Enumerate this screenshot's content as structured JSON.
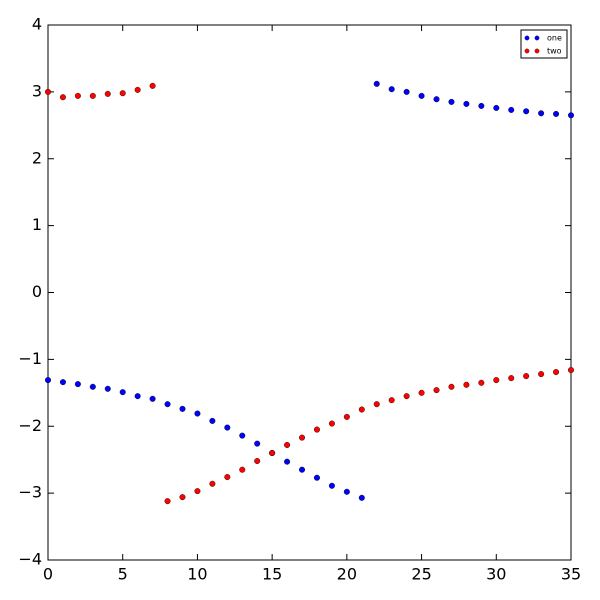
{
  "chart_data": {
    "type": "scatter",
    "x": [
      0,
      1,
      2,
      3,
      4,
      5,
      6,
      7,
      8,
      9,
      10,
      11,
      12,
      13,
      14,
      15,
      16,
      17,
      18,
      19,
      20,
      21,
      22,
      23,
      24,
      25,
      26,
      27,
      28,
      29,
      30,
      31,
      32,
      33,
      34,
      35
    ],
    "series": [
      {
        "name": "one",
        "color": "#0000ff",
        "values": [
          -1.31,
          -1.34,
          -1.37,
          -1.41,
          -1.44,
          -1.49,
          -1.55,
          -1.59,
          -1.67,
          -1.74,
          -1.81,
          -1.92,
          -2.02,
          -2.14,
          -2.26,
          -2.4,
          -2.53,
          -2.65,
          -2.77,
          -2.89,
          -2.98,
          -3.07,
          3.12,
          3.04,
          3.0,
          2.94,
          2.89,
          2.85,
          2.82,
          2.79,
          2.76,
          2.73,
          2.71,
          2.68,
          2.67,
          2.65
        ]
      },
      {
        "name": "two",
        "color": "#ff0000",
        "values": [
          3.0,
          2.92,
          2.94,
          2.94,
          2.97,
          2.98,
          3.03,
          3.09,
          -3.12,
          -3.06,
          -2.97,
          -2.86,
          -2.76,
          -2.65,
          -2.52,
          -2.4,
          -2.28,
          -2.17,
          -2.05,
          -1.96,
          -1.86,
          -1.75,
          -1.67,
          -1.61,
          -1.55,
          -1.5,
          -1.46,
          -1.41,
          -1.38,
          -1.35,
          -1.31,
          -1.28,
          -1.25,
          -1.22,
          -1.19,
          -1.16
        ]
      }
    ],
    "xlim": [
      0,
      35
    ],
    "xticks": [
      0,
      5,
      10,
      15,
      20,
      25,
      30,
      35
    ],
    "ylim": [
      -4,
      4
    ],
    "yticks": [
      {
        "value": -4,
        "label": "−4"
      },
      {
        "value": -3,
        "label": "−3"
      },
      {
        "value": -2,
        "label": "−2"
      },
      {
        "value": -1,
        "label": "−1"
      },
      0,
      1,
      2,
      3,
      4
    ],
    "legend": "upper right"
  }
}
